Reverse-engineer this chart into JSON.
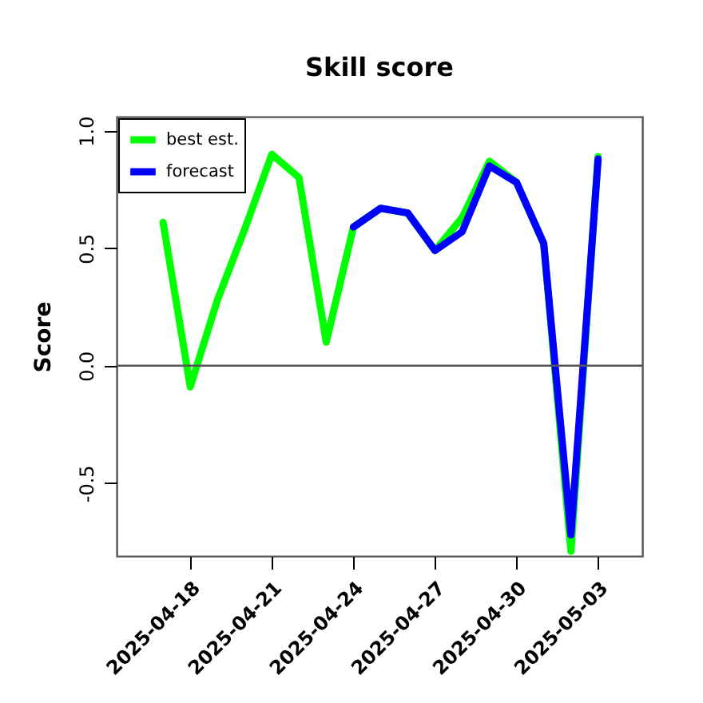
{
  "chart_data": {
    "type": "line",
    "title": "Skill score",
    "ylabel": "Score",
    "x": [
      "2025-04-17",
      "2025-04-18",
      "2025-04-19",
      "2025-04-20",
      "2025-04-21",
      "2025-04-22",
      "2025-04-23",
      "2025-04-24",
      "2025-04-25",
      "2025-04-26",
      "2025-04-27",
      "2025-04-28",
      "2025-04-29",
      "2025-04-30",
      "2025-05-01",
      "2025-05-02",
      "2025-05-03"
    ],
    "series": [
      {
        "name": "best est.",
        "color": "#00ff00",
        "values": [
          0.61,
          -0.09,
          0.28,
          0.58,
          0.9,
          0.8,
          0.1,
          0.59,
          0.67,
          0.65,
          0.49,
          0.63,
          0.87,
          0.78,
          0.52,
          -0.79,
          0.89
        ]
      },
      {
        "name": "forecast",
        "color": "#0000ff",
        "values": [
          null,
          null,
          null,
          null,
          null,
          null,
          null,
          0.59,
          0.67,
          0.65,
          0.49,
          0.57,
          0.85,
          0.78,
          0.52,
          -0.72,
          0.88
        ]
      }
    ],
    "xlim": [
      "2025-04-15T07:00",
      "2025-05-04T15:00"
    ],
    "xticks": [
      "2025-04-18",
      "2025-04-21",
      "2025-04-24",
      "2025-04-27",
      "2025-04-30",
      "2025-05-03"
    ],
    "ylim": [
      -0.81,
      1.06
    ],
    "yticks": [
      {
        "value": -0.5,
        "label": "-0.5"
      },
      {
        "value": 0,
        "label": "0.0"
      },
      {
        "value": 0.5,
        "label": "0.5"
      },
      {
        "value": 1,
        "label": "1.0"
      }
    ],
    "ref_lines": [
      {
        "axis": "y",
        "value": 0,
        "color": "#555555"
      }
    ],
    "legend": "top left",
    "grid": false,
    "marker": "none",
    "line_style": "solid"
  }
}
